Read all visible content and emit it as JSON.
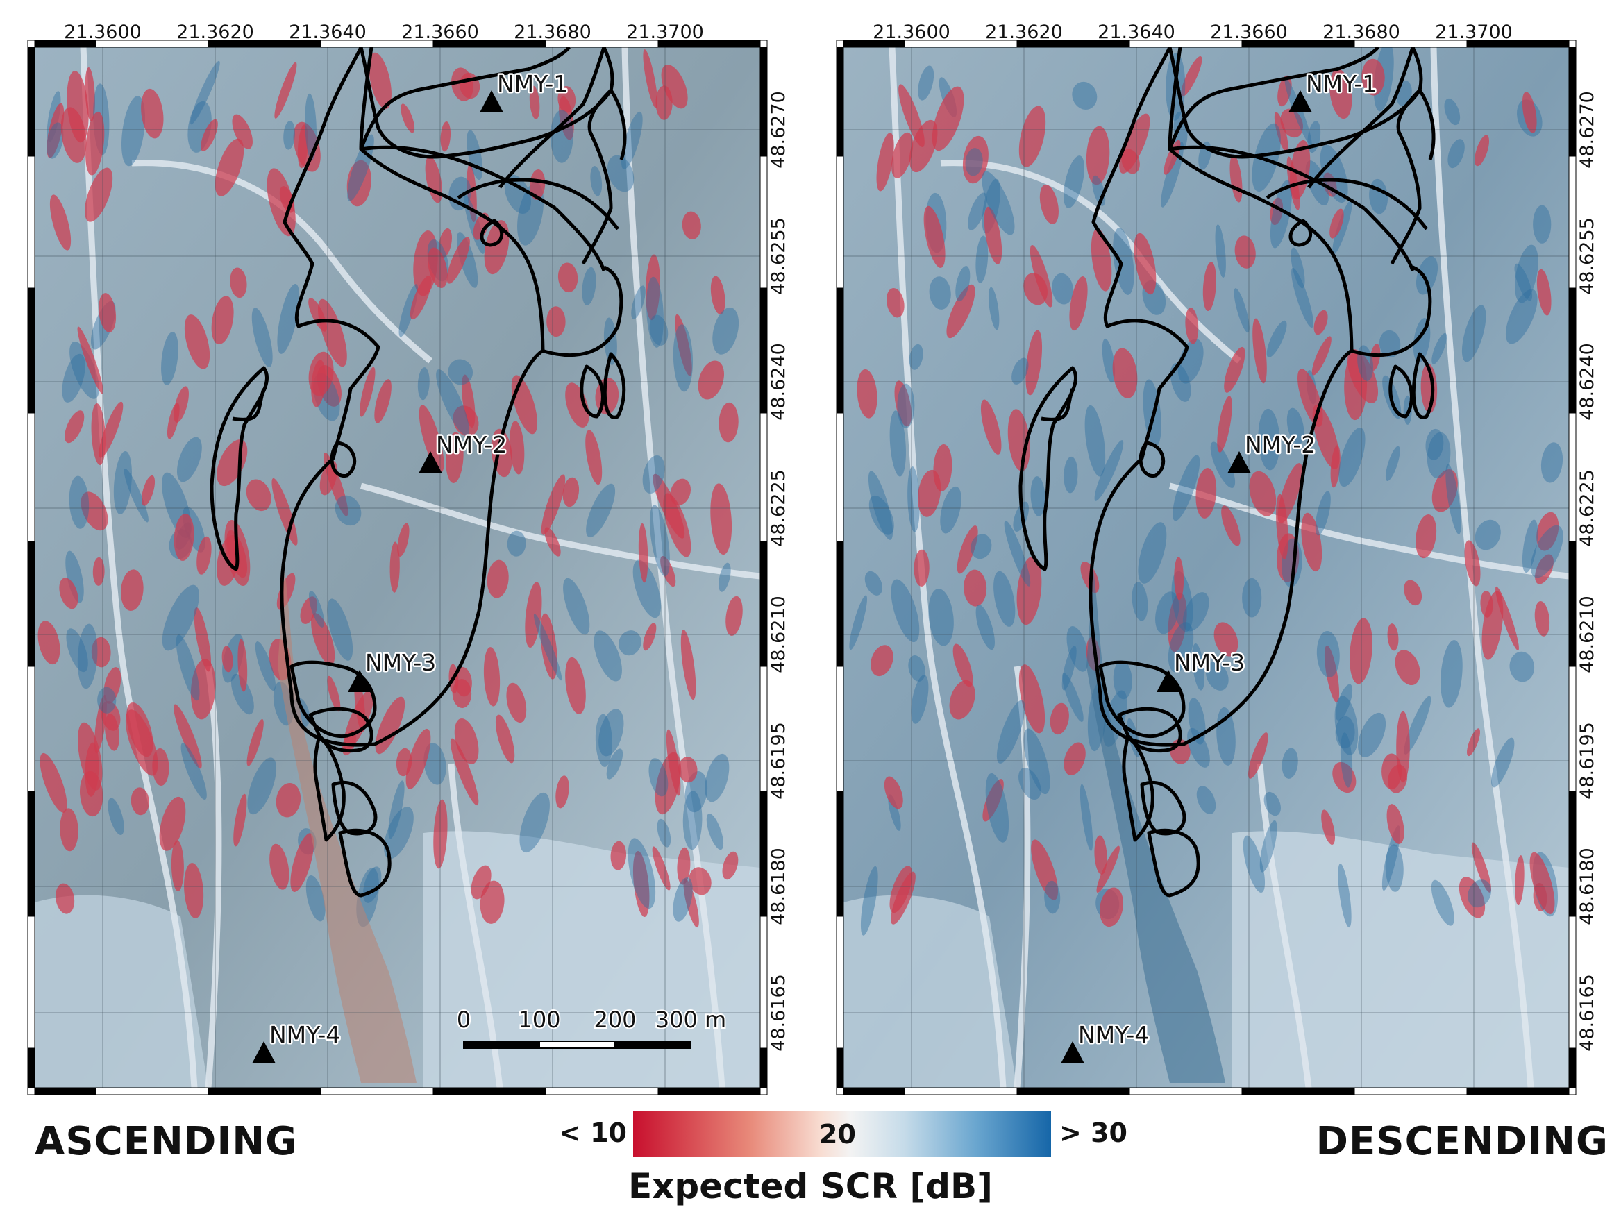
{
  "map": {
    "longitude_ticks": [
      "21.3600",
      "21.3620",
      "21.3640",
      "21.3660",
      "21.3680",
      "21.3700"
    ],
    "latitude_ticks": [
      "48.6270",
      "48.6255",
      "48.6240",
      "48.6225",
      "48.6210",
      "48.6195",
      "48.6180",
      "48.6165"
    ],
    "stations": [
      "NMY-1",
      "NMY-2",
      "NMY-3",
      "NMY-4"
    ],
    "scale_bar_labels": [
      "0",
      "100",
      "200",
      "300 m"
    ]
  },
  "panels": [
    {
      "id": "ascending",
      "title": "ASCENDING"
    },
    {
      "id": "descending",
      "title": "DESCENDING"
    }
  ],
  "colorbar": {
    "min_label": "< 10",
    "mid_label": "20",
    "max_label": "> 30",
    "title": "Expected SCR [dB]",
    "colors": {
      "low": "#c8102e",
      "mid": "#f3f3f3",
      "high": "#1666a8"
    }
  },
  "colors": {
    "outline": "#000000",
    "station_marker": "#000000",
    "ascending_base": "#8aa0ad",
    "descending_base": "#7f9db2",
    "low_scr": "#cf3b4f",
    "high_scr": "#2f6f9f"
  }
}
